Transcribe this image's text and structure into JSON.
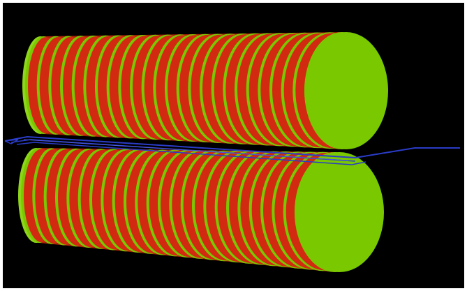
{
  "scene": {
    "background_color": "#000000",
    "frame_color": "#ffffff",
    "objects": [
      {
        "name": "upper-cylinder",
        "description_icon": "segmented-cylinder"
      },
      {
        "name": "lower-cylinder",
        "description_icon": "segmented-cylinder"
      },
      {
        "name": "wire-path",
        "description_icon": "polyline"
      }
    ],
    "colors": {
      "green": "#7ac800",
      "green_light": "#8ed61a",
      "green_dark": "#5e9e00",
      "red": "#d22a10",
      "red_dark": "#a81f0a",
      "wire": "#2a3cc8"
    },
    "segments_per_cylinder": 24
  }
}
